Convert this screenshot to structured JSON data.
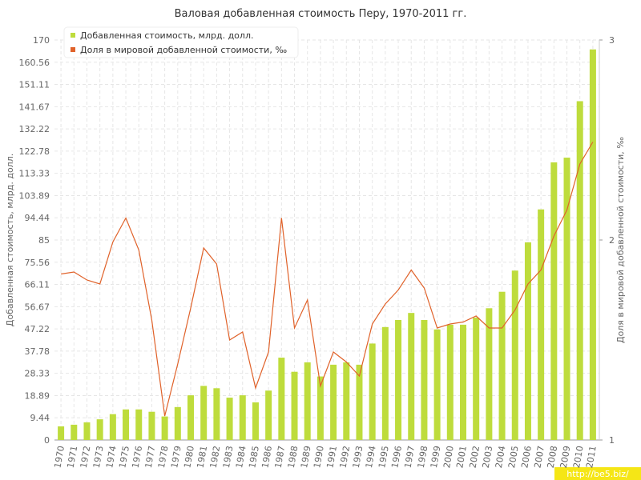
{
  "chart_data": {
    "type": "bar-line",
    "title": "Валовая добавленная стоимость Перу, 1970-2011 гг.",
    "y_label": "Добавленная стоимость, млрд. долл.",
    "y2_label": "Доля в мировой добавленной стоимости, ‰",
    "watermark": "http://be5.biz/",
    "categories": [
      "1970",
      "1971",
      "1972",
      "1973",
      "1974",
      "1975",
      "1976",
      "1977",
      "1978",
      "1979",
      "1980",
      "1981",
      "1982",
      "1983",
      "1984",
      "1985",
      "1986",
      "1987",
      "1988",
      "1989",
      "1990",
      "1991",
      "1992",
      "1993",
      "1994",
      "1995",
      "1996",
      "1997",
      "1998",
      "1999",
      "2000",
      "2001",
      "2002",
      "2003",
      "2004",
      "2005",
      "2006",
      "2007",
      "2008",
      "2009",
      "2010",
      "2011"
    ],
    "series": [
      {
        "name": "Добавленная стоимость, млрд. долл.",
        "color": "#bedc3c",
        "type": "bar",
        "values": [
          5.8,
          6.5,
          7.5,
          8.8,
          11,
          13,
          13,
          12,
          10,
          14,
          19,
          23,
          22,
          18,
          19,
          16,
          21,
          35,
          29,
          33,
          27,
          32,
          33,
          32,
          41,
          48,
          51,
          54,
          51,
          47,
          49,
          49,
          52,
          56,
          63,
          72,
          84,
          98,
          118,
          120,
          144,
          166
        ]
      },
      {
        "name": "Доля в мировой добавленной стоимости, ‰",
        "color": "#e0622a",
        "type": "line",
        "axis": "y2",
        "values": [
          1.83,
          1.84,
          1.8,
          1.78,
          1.99,
          2.11,
          1.95,
          1.6,
          1.12,
          1.38,
          1.66,
          1.96,
          1.88,
          1.5,
          1.54,
          1.26,
          1.44,
          2.11,
          1.56,
          1.7,
          1.27,
          1.44,
          1.39,
          1.32,
          1.58,
          1.68,
          1.75,
          1.85,
          1.76,
          1.56,
          1.58,
          1.59,
          1.62,
          1.56,
          1.56,
          1.65,
          1.78,
          1.85,
          2.02,
          2.15,
          2.38,
          2.49
        ]
      }
    ],
    "ylim": [
      0,
      170
    ],
    "yticks": [
      0,
      9.44,
      18.89,
      28.33,
      37.78,
      47.22,
      56.67,
      66.11,
      75.56,
      85,
      94.44,
      103.89,
      113.33,
      122.78,
      132.22,
      141.67,
      151.11,
      160.56,
      170
    ],
    "y2lim": [
      1,
      3
    ],
    "y2ticks": [
      1,
      2,
      3
    ],
    "grid": true
  }
}
